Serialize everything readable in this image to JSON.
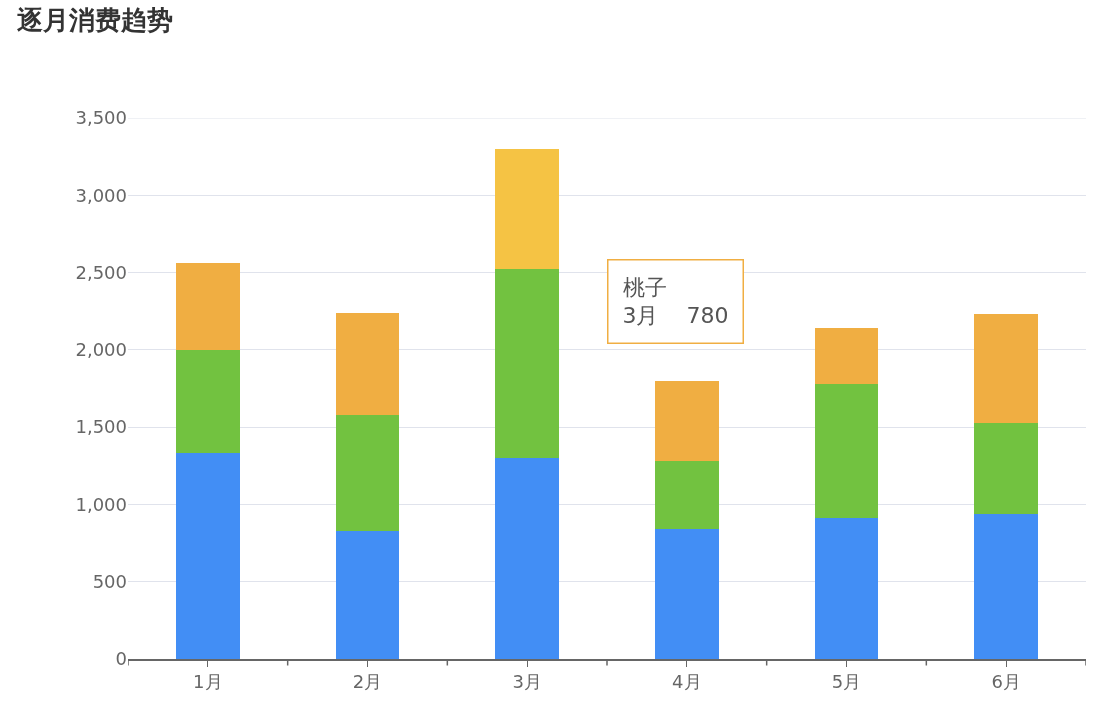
{
  "chart_data": {
    "type": "bar",
    "title": "逐月消费趋势",
    "stacked": true,
    "categories": [
      "1月",
      "2月",
      "3月",
      "4月",
      "5月",
      "6月"
    ],
    "series": [
      {
        "color": "#428ef5",
        "values": [
          1330,
          830,
          1300,
          840,
          910,
          940
        ]
      },
      {
        "color": "#72c240",
        "values": [
          670,
          750,
          1220,
          440,
          870,
          590
        ]
      },
      {
        "colors": [
          "#f0ae42",
          "#f0ae42",
          "#f5c344",
          "#f0ae42",
          "#f0ae42",
          "#f0ae42"
        ],
        "values": [
          560,
          660,
          780,
          520,
          360,
          700
        ]
      }
    ],
    "ylim": [
      0,
      3500
    ],
    "yticks": [
      0,
      500,
      {
        "value": 1000,
        "label": "1,000"
      },
      {
        "value": 1500,
        "label": "1,500"
      },
      {
        "value": 2000,
        "label": "2,000"
      },
      {
        "value": 2500,
        "label": "2,500"
      },
      {
        "value": 3000,
        "label": "3,000"
      },
      {
        "value": 3500,
        "label": "3,500"
      }
    ],
    "grid": "y",
    "annotations": [
      "桃子\n3月    780"
    ]
  }
}
